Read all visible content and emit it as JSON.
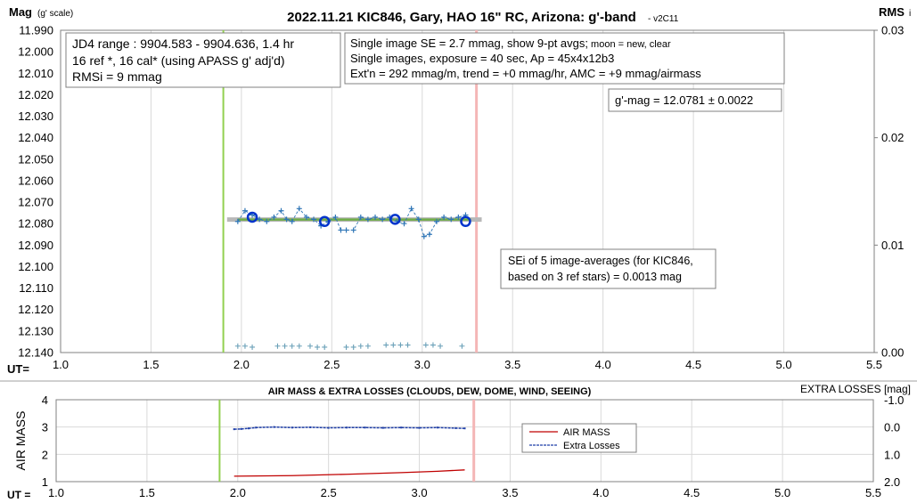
{
  "chart_data": [
    {
      "type": "scatter",
      "title": "2022.11.21 KIC846, Gary, HAO 16\" RC, Arizona: g'-band",
      "title_suffix": "- v2C11",
      "ylabel": "Mag",
      "ylabel_note": "(g' scale)",
      "y2label": "RMS",
      "y2label_note": "i",
      "xlabel": "UT=",
      "xlim": [
        1.0,
        5.5
      ],
      "ylim": [
        11.99,
        12.14
      ],
      "y_inverted": true,
      "y2lim": [
        0.0,
        0.03
      ],
      "x_ticks": [
        "1.0",
        "1.5",
        "2.0",
        "2.5",
        "3.0",
        "3.5",
        "4.0",
        "4.5",
        "5.0",
        "5.5"
      ],
      "y_ticks": [
        "11.990",
        "12.000",
        "12.010",
        "12.020",
        "12.030",
        "12.040",
        "12.050",
        "12.060",
        "12.070",
        "12.080",
        "12.090",
        "12.100",
        "12.110",
        "12.120",
        "12.130",
        "12.140"
      ],
      "y2_ticks": [
        "0.03",
        "0.02",
        "0.01",
        "0.00"
      ],
      "grid": true,
      "vlines": [
        {
          "x": 1.9,
          "color": "#92d050"
        },
        {
          "x": 3.3,
          "color": "#f4b6b6"
        }
      ],
      "annotations": {
        "jd_lines": [
          "JD4 range : 9904.583 - 9904.636,  1.4 hr",
          "16 ref *, 16 cal* (using APASS g' adj'd)",
          "RMSi = 9 mmag"
        ],
        "se_line1_main": "Single image SE = 2.7 mmag, show  9-pt avgs;",
        "se_line1_small": " moon = new, clear",
        "se_lines": [
          "Single images, exposure = 40 sec, Ap = 45x4x12b3",
          "Ext'n = 292 mmag/m, trend = +0 mmag/hr, AMC = +9 mmag/airmass"
        ],
        "gmag": "g'-mag = 12.0781 ± 0.0022",
        "sei_lines": [
          "SEi of 5 image-averages (for KIC846,",
          "based on 3 ref stars) = 0.0013 mag"
        ]
      },
      "series": [
        {
          "kind": "single-images",
          "color": "#2e75b6",
          "x": [
            1.98,
            2.02,
            2.06,
            2.1,
            2.14,
            2.18,
            2.22,
            2.25,
            2.28,
            2.32,
            2.36,
            2.4,
            2.44,
            2.48,
            2.52,
            2.55,
            2.58,
            2.62,
            2.66,
            2.7,
            2.74,
            2.78,
            2.82,
            2.86,
            2.9,
            2.94,
            2.98,
            3.01,
            3.04,
            3.08,
            3.12,
            3.16,
            3.2,
            3.24
          ],
          "y": [
            12.079,
            12.074,
            12.076,
            12.078,
            12.079,
            12.077,
            12.074,
            12.078,
            12.079,
            12.073,
            12.077,
            12.078,
            12.081,
            12.079,
            12.077,
            12.083,
            12.083,
            12.083,
            12.077,
            12.078,
            12.077,
            12.078,
            12.077,
            12.079,
            12.08,
            12.073,
            12.078,
            12.086,
            12.085,
            12.079,
            12.077,
            12.078,
            12.077,
            12.076
          ]
        },
        {
          "kind": "9-pt averages",
          "color": "#0033cc",
          "x": [
            2.06,
            2.46,
            2.85,
            3.24
          ],
          "y": [
            12.077,
            12.079,
            12.078,
            12.079
          ]
        },
        {
          "kind": "trend",
          "color": "#70ad47",
          "x": [
            1.98,
            3.27
          ],
          "y": [
            12.0781,
            12.0781
          ]
        },
        {
          "kind": "rms",
          "color": "#6aa0b8",
          "x": [
            1.98,
            2.02,
            2.06,
            2.2,
            2.24,
            2.28,
            2.32,
            2.38,
            2.42,
            2.46,
            2.58,
            2.62,
            2.66,
            2.7,
            2.8,
            2.84,
            2.88,
            2.92,
            3.02,
            3.06,
            3.1,
            3.22
          ],
          "y": [
            0.0006,
            0.0006,
            0.0005,
            0.0006,
            0.0006,
            0.0006,
            0.0006,
            0.0006,
            0.0005,
            0.0005,
            0.0005,
            0.0005,
            0.0006,
            0.0006,
            0.0007,
            0.0007,
            0.0007,
            0.0007,
            0.0007,
            0.0007,
            0.0006,
            0.0006
          ]
        }
      ]
    },
    {
      "type": "line",
      "title": "AIR MASS & EXTRA LOSSES (CLOUDS, DEW, DOME, WIND, SEEING)",
      "ylabel": "AIR MASS",
      "y2label": "EXTRA LOSSES [mag]",
      "xlabel": "UT =",
      "xlim": [
        1.0,
        5.5
      ],
      "ylim": [
        1,
        4
      ],
      "y2lim": [
        2.0,
        -1.0
      ],
      "x_ticks": [
        "1.0",
        "1.5",
        "2.0",
        "2.5",
        "3.0",
        "3.5",
        "4.0",
        "4.5",
        "5.0",
        "5.5"
      ],
      "y_ticks": [
        "4",
        "3",
        "2",
        "1"
      ],
      "y2_ticks": [
        "-1.0",
        "0.0",
        "1.0",
        "2.0"
      ],
      "grid": true,
      "vlines": [
        {
          "x": 1.9,
          "color": "#92d050"
        },
        {
          "x": 3.3,
          "color": "#f4b6b6"
        }
      ],
      "legend": {
        "placement": "center-right",
        "entries": [
          "AIR MASS",
          "Extra Losses"
        ]
      },
      "series": [
        {
          "name": "AIR MASS",
          "color": "#c00000",
          "x": [
            1.98,
            2.3,
            2.6,
            2.9,
            3.1,
            3.25
          ],
          "y": [
            1.2,
            1.22,
            1.27,
            1.33,
            1.38,
            1.43
          ]
        },
        {
          "name": "Extra Losses",
          "color": "#1f3fa8",
          "x": [
            1.98,
            2.02,
            2.06,
            2.1,
            2.2,
            2.3,
            2.4,
            2.5,
            2.6,
            2.7,
            2.8,
            2.9,
            3.0,
            3.1,
            3.2,
            3.25
          ],
          "y": [
            0.08,
            0.07,
            0.05,
            0.02,
            0.0,
            0.02,
            0.01,
            0.03,
            0.02,
            0.02,
            0.03,
            0.02,
            0.03,
            0.02,
            0.04,
            0.05
          ]
        }
      ]
    }
  ]
}
